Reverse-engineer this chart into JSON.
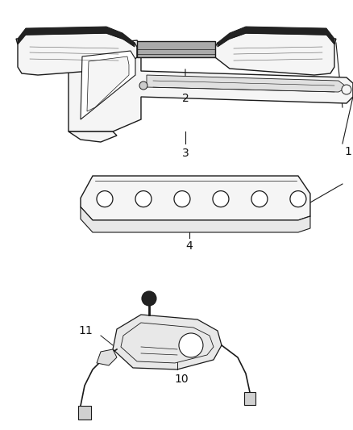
{
  "background_color": "#ffffff",
  "line_color": "#1a1a1a",
  "fill_color": "#f5f5f5",
  "dark_fill": "#222222",
  "mid_fill": "#cccccc",
  "label_color": "#111111",
  "figsize": [
    4.38,
    5.33
  ],
  "dpi": 100
}
